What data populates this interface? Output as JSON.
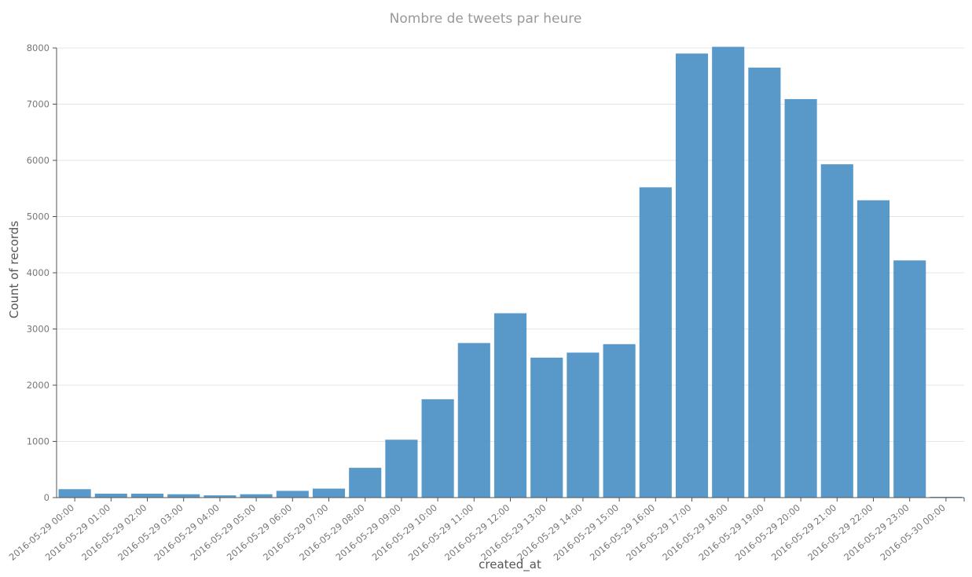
{
  "chart_data": {
    "type": "bar",
    "title": "Nombre de tweets par heure",
    "xlabel": "created_at",
    "ylabel": "Count of records",
    "ylim": [
      0,
      8000
    ],
    "yticks": [
      0,
      1000,
      2000,
      3000,
      4000,
      5000,
      6000,
      7000,
      8000
    ],
    "grid": true,
    "categories": [
      "2016-05-29 00:00",
      "2016-05-29 01:00",
      "2016-05-29 02:00",
      "2016-05-29 03:00",
      "2016-05-29 04:00",
      "2016-05-29 05:00",
      "2016-05-29 06:00",
      "2016-05-29 07:00",
      "2016-05-29 08:00",
      "2016-05-29 09:00",
      "2016-05-29 10:00",
      "2016-05-29 11:00",
      "2016-05-29 12:00",
      "2016-05-29 13:00",
      "2016-05-29 14:00",
      "2016-05-29 15:00",
      "2016-05-29 16:00",
      "2016-05-29 17:00",
      "2016-05-29 18:00",
      "2016-05-29 19:00",
      "2016-05-29 20:00",
      "2016-05-29 21:00",
      "2016-05-29 22:00",
      "2016-05-29 23:00",
      "2016-05-30 00:00"
    ],
    "values": [
      150,
      70,
      70,
      60,
      40,
      60,
      120,
      160,
      530,
      1030,
      1750,
      2750,
      3280,
      2490,
      2580,
      2730,
      5520,
      7900,
      8020,
      7650,
      7090,
      5930,
      5290,
      4220,
      5
    ],
    "colors": {
      "bar": "#4a90c4",
      "grid": "#e5e5e5",
      "axis": "#555555"
    }
  }
}
